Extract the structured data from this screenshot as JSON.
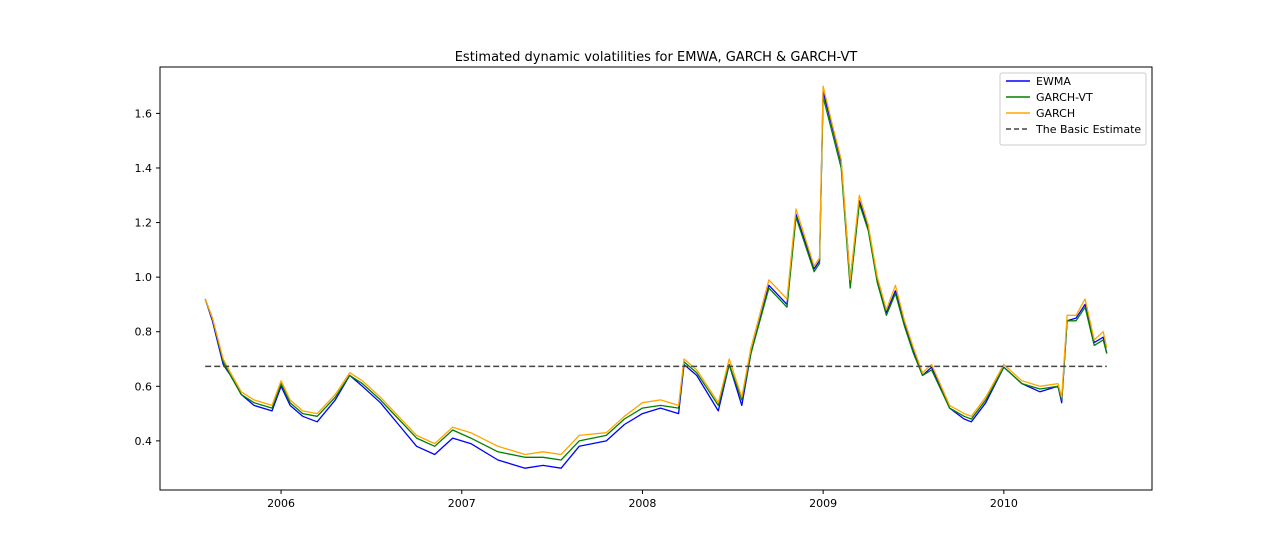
{
  "chart_data": {
    "type": "line",
    "title": "Estimated dynamic volatilities for EMWA, GARCH & GARCH-VT",
    "xlabel": "",
    "ylabel": "",
    "xlim": [
      2005.33,
      2010.82
    ],
    "ylim": [
      0.22,
      1.77
    ],
    "x_ticks": [
      2006,
      2007,
      2008,
      2009,
      2010
    ],
    "x_tick_labels": [
      "2006",
      "2007",
      "2008",
      "2009",
      "2010"
    ],
    "y_ticks": [
      0.4,
      0.6,
      0.8,
      1.0,
      1.2,
      1.4,
      1.6
    ],
    "y_tick_labels": [
      "0.4",
      "0.6",
      "0.8",
      "1.0",
      "1.2",
      "1.4",
      "1.6"
    ],
    "grid": false,
    "legend_position": "top-right",
    "series": [
      {
        "name": "EWMA",
        "color": "#0000ff",
        "style": "solid",
        "x": [
          2005.58,
          2005.62,
          2005.68,
          2005.72,
          2005.78,
          2005.85,
          2005.95,
          2006.0,
          2006.05,
          2006.12,
          2006.2,
          2006.3,
          2006.38,
          2006.45,
          2006.55,
          2006.65,
          2006.75,
          2006.85,
          2006.95,
          2007.05,
          2007.2,
          2007.35,
          2007.45,
          2007.55,
          2007.65,
          2007.8,
          2007.9,
          2008.0,
          2008.1,
          2008.2,
          2008.23,
          2008.3,
          2008.42,
          2008.48,
          2008.55,
          2008.6,
          2008.7,
          2008.8,
          2008.85,
          2008.95,
          2008.98,
          2009.0,
          2009.05,
          2009.1,
          2009.15,
          2009.2,
          2009.25,
          2009.3,
          2009.35,
          2009.4,
          2009.45,
          2009.5,
          2009.55,
          2009.6,
          2009.7,
          2009.78,
          2009.82,
          2009.9,
          2010.0,
          2010.1,
          2010.2,
          2010.3,
          2010.32,
          2010.35,
          2010.4,
          2010.45,
          2010.5,
          2010.55,
          2010.57
        ],
        "y": [
          0.92,
          0.84,
          0.68,
          0.64,
          0.57,
          0.53,
          0.51,
          0.6,
          0.53,
          0.49,
          0.47,
          0.55,
          0.64,
          0.6,
          0.54,
          0.46,
          0.38,
          0.35,
          0.41,
          0.39,
          0.33,
          0.3,
          0.31,
          0.3,
          0.38,
          0.4,
          0.46,
          0.5,
          0.52,
          0.5,
          0.68,
          0.64,
          0.51,
          0.68,
          0.53,
          0.72,
          0.97,
          0.9,
          1.23,
          1.03,
          1.06,
          1.68,
          1.55,
          1.42,
          0.99,
          1.28,
          1.18,
          0.99,
          0.87,
          0.95,
          0.83,
          0.73,
          0.64,
          0.67,
          0.52,
          0.48,
          0.47,
          0.54,
          0.67,
          0.61,
          0.58,
          0.6,
          0.54,
          0.84,
          0.85,
          0.9,
          0.76,
          0.78,
          0.72
        ]
      },
      {
        "name": "GARCH-VT",
        "color": "#008000",
        "style": "solid",
        "x": [
          2005.58,
          2005.62,
          2005.68,
          2005.72,
          2005.78,
          2005.85,
          2005.95,
          2006.0,
          2006.05,
          2006.12,
          2006.2,
          2006.3,
          2006.38,
          2006.45,
          2006.55,
          2006.65,
          2006.75,
          2006.85,
          2006.95,
          2007.05,
          2007.2,
          2007.35,
          2007.45,
          2007.55,
          2007.65,
          2007.8,
          2007.9,
          2008.0,
          2008.1,
          2008.2,
          2008.23,
          2008.3,
          2008.42,
          2008.48,
          2008.55,
          2008.6,
          2008.7,
          2008.8,
          2008.85,
          2008.95,
          2008.98,
          2009.0,
          2009.05,
          2009.1,
          2009.15,
          2009.2,
          2009.25,
          2009.3,
          2009.35,
          2009.4,
          2009.45,
          2009.5,
          2009.55,
          2009.6,
          2009.7,
          2009.78,
          2009.82,
          2009.9,
          2010.0,
          2010.1,
          2010.2,
          2010.3,
          2010.32,
          2010.35,
          2010.4,
          2010.45,
          2010.5,
          2010.55,
          2010.57
        ],
        "y": [
          0.92,
          0.85,
          0.69,
          0.64,
          0.57,
          0.54,
          0.52,
          0.61,
          0.54,
          0.5,
          0.49,
          0.56,
          0.64,
          0.61,
          0.55,
          0.48,
          0.41,
          0.38,
          0.44,
          0.41,
          0.36,
          0.34,
          0.34,
          0.33,
          0.4,
          0.42,
          0.48,
          0.52,
          0.53,
          0.52,
          0.69,
          0.65,
          0.53,
          0.68,
          0.55,
          0.72,
          0.96,
          0.89,
          1.22,
          1.02,
          1.05,
          1.66,
          1.53,
          1.4,
          0.96,
          1.27,
          1.17,
          0.98,
          0.86,
          0.94,
          0.82,
          0.72,
          0.64,
          0.66,
          0.52,
          0.49,
          0.48,
          0.55,
          0.67,
          0.61,
          0.59,
          0.6,
          0.55,
          0.84,
          0.84,
          0.89,
          0.75,
          0.77,
          0.72
        ]
      },
      {
        "name": "GARCH",
        "color": "#ffa500",
        "style": "solid",
        "x": [
          2005.58,
          2005.62,
          2005.68,
          2005.72,
          2005.78,
          2005.85,
          2005.95,
          2006.0,
          2006.05,
          2006.12,
          2006.2,
          2006.3,
          2006.38,
          2006.45,
          2006.55,
          2006.65,
          2006.75,
          2006.85,
          2006.95,
          2007.05,
          2007.2,
          2007.35,
          2007.45,
          2007.55,
          2007.65,
          2007.8,
          2007.9,
          2008.0,
          2008.1,
          2008.2,
          2008.23,
          2008.3,
          2008.42,
          2008.48,
          2008.55,
          2008.6,
          2008.7,
          2008.8,
          2008.85,
          2008.95,
          2008.98,
          2009.0,
          2009.05,
          2009.1,
          2009.15,
          2009.2,
          2009.25,
          2009.3,
          2009.35,
          2009.4,
          2009.45,
          2009.5,
          2009.55,
          2009.6,
          2009.7,
          2009.78,
          2009.82,
          2009.9,
          2010.0,
          2010.1,
          2010.2,
          2010.3,
          2010.32,
          2010.35,
          2010.4,
          2010.45,
          2010.5,
          2010.55,
          2010.57
        ],
        "y": [
          0.92,
          0.85,
          0.7,
          0.65,
          0.58,
          0.55,
          0.53,
          0.62,
          0.55,
          0.51,
          0.5,
          0.57,
          0.65,
          0.62,
          0.56,
          0.49,
          0.42,
          0.39,
          0.45,
          0.43,
          0.38,
          0.35,
          0.36,
          0.35,
          0.42,
          0.43,
          0.49,
          0.54,
          0.55,
          0.53,
          0.7,
          0.66,
          0.54,
          0.7,
          0.56,
          0.74,
          0.99,
          0.92,
          1.25,
          1.04,
          1.07,
          1.7,
          1.56,
          1.43,
          0.99,
          1.3,
          1.19,
          1.0,
          0.88,
          0.97,
          0.84,
          0.74,
          0.65,
          0.68,
          0.53,
          0.5,
          0.49,
          0.56,
          0.68,
          0.62,
          0.6,
          0.61,
          0.56,
          0.86,
          0.86,
          0.92,
          0.77,
          0.8,
          0.74
        ]
      },
      {
        "name": "The Basic Estimate",
        "color": "#444444",
        "style": "dashed",
        "x": [
          2005.58,
          2010.57
        ],
        "y": [
          0.673,
          0.673
        ]
      }
    ]
  }
}
